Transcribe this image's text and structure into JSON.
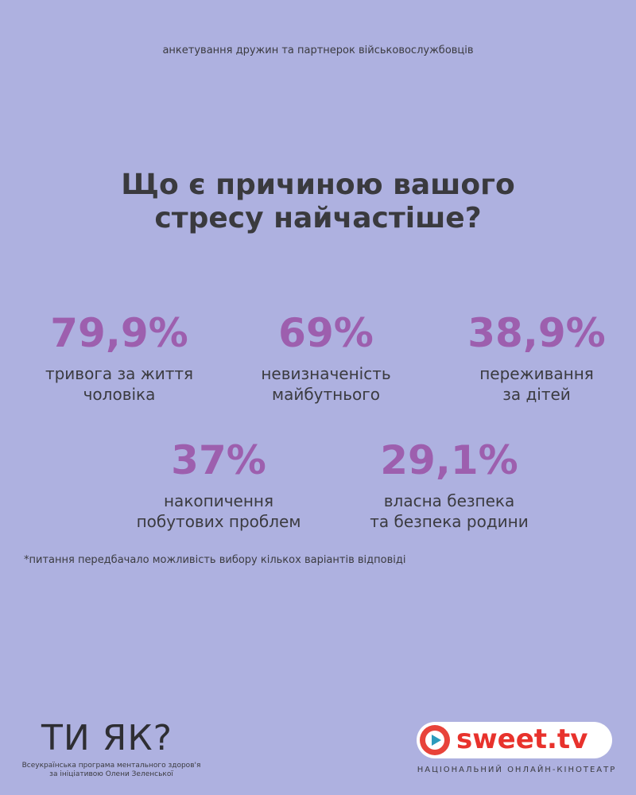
{
  "header": {
    "subtitle": "анкетування дружин та партнерок військовослужбовців",
    "title_lines": [
      "Що є причиною вашого",
      "стресу найчастіше?"
    ]
  },
  "stats": [
    {
      "value": "79,9%",
      "label_lines": [
        "тривога за життя",
        "чоловіка"
      ]
    },
    {
      "value": "69%",
      "label_lines": [
        "невизначеність",
        "майбутнього"
      ]
    },
    {
      "value": "38,9%",
      "label_lines": [
        "переживання",
        "за дітей"
      ]
    },
    {
      "value": "37%",
      "label_lines": [
        "накопичення",
        "побутових проблем"
      ]
    },
    {
      "value": "29,1%",
      "label_lines": [
        "власна безпека",
        "та безпека родини"
      ]
    }
  ],
  "footnote": "*питання передбачало можливість вибору кількох варіантів відповіді",
  "footer": {
    "left_logo": "ТИ ЯК?",
    "left_caption_lines": [
      "Всеукраїнська програма ментального здоров'я",
      "за ініціативою Олени Зеленської"
    ],
    "right_logo": "sweet.tv",
    "right_caption": "НАЦІОНАЛЬНИЙ ОНЛАЙН-КІНОТЕАТР"
  }
}
